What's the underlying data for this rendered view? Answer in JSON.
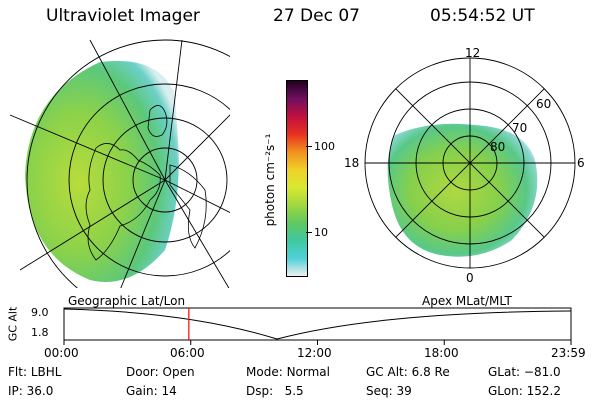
{
  "header": {
    "title": "Ultraviolet Imager",
    "date": "27 Dec 07",
    "time": "05:54:52 UT"
  },
  "colorbar": {
    "unit_label": "photon cm⁻²s⁻¹",
    "ticks": [
      {
        "label": "100",
        "value": 100
      },
      {
        "label": "10",
        "value": 10
      }
    ],
    "stops": [
      "#f0f0f0",
      "#50d0d8",
      "#40c8a0",
      "#60c860",
      "#a0d840",
      "#d8e830",
      "#f0d028",
      "#f09020",
      "#e83020",
      "#c01040",
      "#701060",
      "#200020"
    ]
  },
  "left_panel": {
    "caption": "Geographic Lat/Lon"
  },
  "right_panel": {
    "caption": "Apex MLat/MLT",
    "mlt_labels": {
      "top": "12",
      "left": "18",
      "right": "6",
      "bottom": "0"
    },
    "lat_labels": [
      "60",
      "70",
      "80"
    ]
  },
  "timeline": {
    "axis_label": "GC Alt",
    "y_ticks": [
      "9.0",
      "1.8"
    ],
    "x_ticks": [
      "00:00",
      "06:00",
      "12:00",
      "18:00",
      "23:59"
    ],
    "current_marker_hours": 5.91,
    "marker_color": "#ff0000"
  },
  "status": {
    "row1": [
      {
        "label": "Flt:",
        "value": "LBHL"
      },
      {
        "label": "Door:",
        "value": "Open"
      },
      {
        "label": "Mode:",
        "value": "Normal"
      },
      {
        "label": "GC Alt:",
        "value": "6.8 Re"
      },
      {
        "label": "GLat:",
        "value": "−81.0"
      }
    ],
    "row2": [
      {
        "label": "IP:",
        "value": "36.0"
      },
      {
        "label": "Gain:",
        "value": "14"
      },
      {
        "label": "Dsp:",
        "value": "5.5"
      },
      {
        "label": "Seq:",
        "value": "39"
      },
      {
        "label": "GLon:",
        "value": "152.2"
      }
    ]
  }
}
